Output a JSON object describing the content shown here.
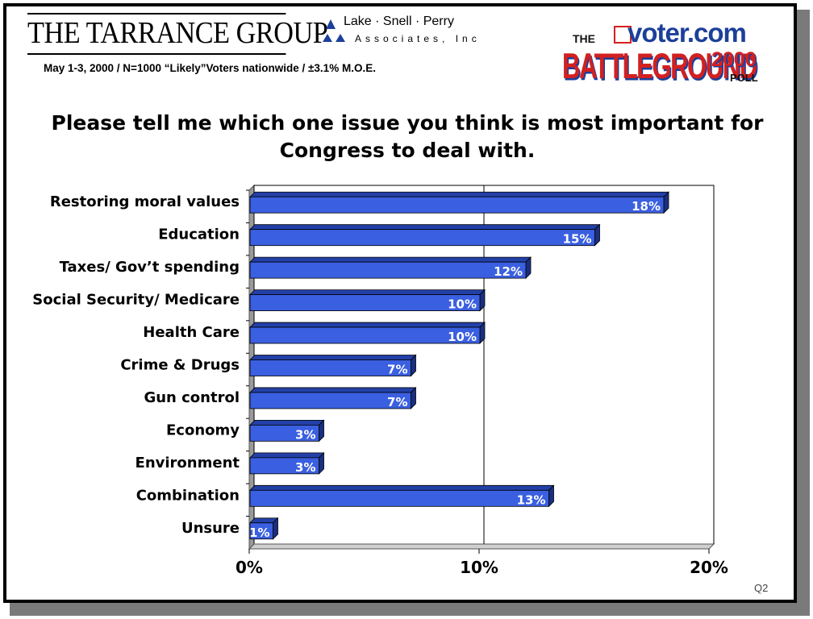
{
  "header": {
    "firm_left": "THE TARRANCE GROUP",
    "firm_right_name": "Lake · Snell · Perry",
    "firm_right_sub": "Associates, Inc",
    "meta": "May 1-3, 2000  /  N=1000   “Likely”Voters nationwide  / ±3.1% M.O.E.",
    "brand_the": "THE",
    "brand_site": "voter.com",
    "brand_main": "BATTLEGROUND",
    "brand_year": "2000",
    "brand_poll": "POLL"
  },
  "footer": {
    "question_id": "Q2"
  },
  "colors": {
    "bar_face": "#3a5fe0",
    "bar_top": "#2340a8",
    "bar_side": "#1a2f80",
    "floor": "#9a9a9a",
    "brand_blue": "#1c3f9a",
    "brand_red": "#d32020"
  },
  "chart_data": {
    "type": "bar",
    "orientation": "horizontal",
    "title": "Please tell me which one issue you think is most important for Congress to deal with.",
    "categories": [
      "Restoring moral values",
      "Education",
      "Taxes/ Gov’t spending",
      "Social Security/ Medicare",
      "Health Care",
      "Crime & Drugs",
      "Gun control",
      "Economy",
      "Environment",
      "Combination",
      "Unsure"
    ],
    "values": [
      18,
      15,
      12,
      10,
      10,
      7,
      7,
      3,
      3,
      13,
      1
    ],
    "value_labels": [
      "18%",
      "15%",
      "12%",
      "10%",
      "10%",
      "7%",
      "7%",
      "3%",
      "3%",
      "13%",
      "1%"
    ],
    "xlim": [
      0,
      20
    ],
    "xticks": [
      0,
      10,
      20
    ],
    "xtick_labels": [
      "0%",
      "10%",
      "20%"
    ],
    "grid": "vertical"
  }
}
